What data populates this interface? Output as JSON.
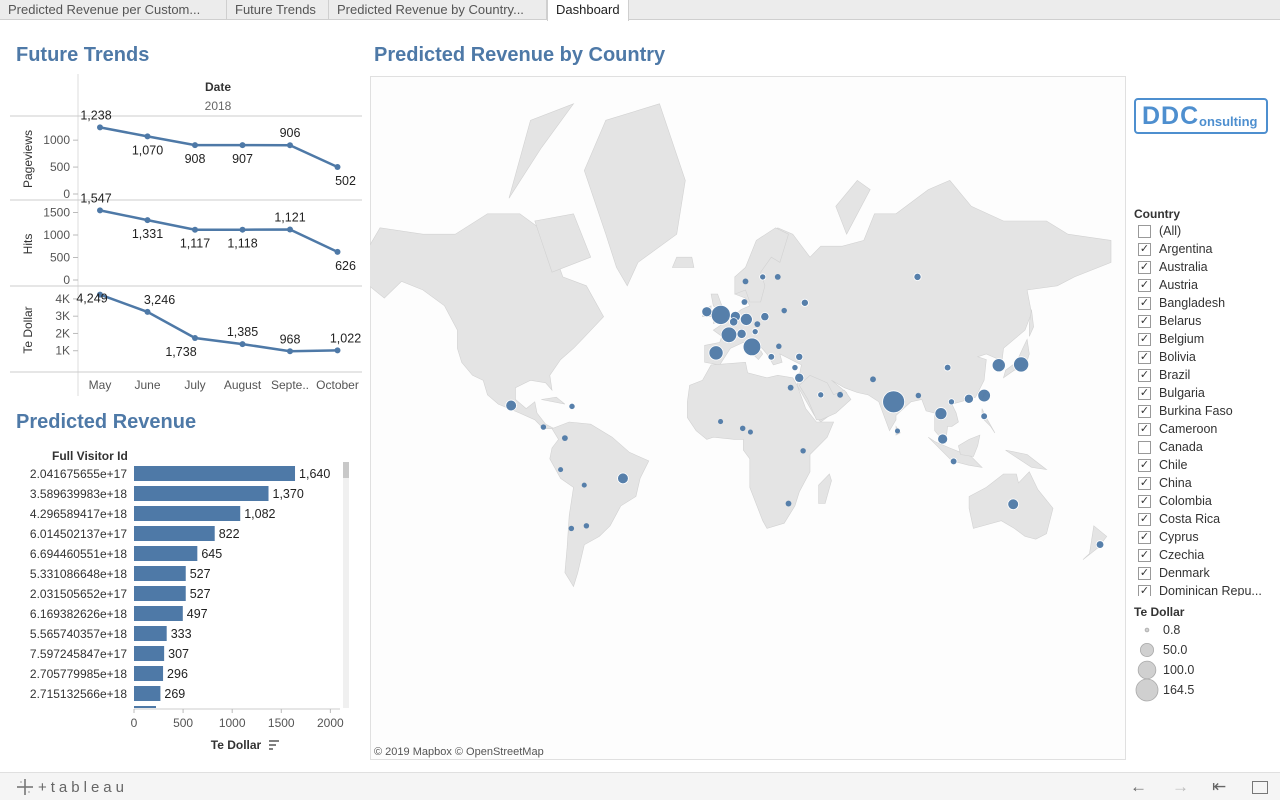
{
  "tabs": [
    {
      "label": "Predicted Revenue per Custom...",
      "active": false
    },
    {
      "label": "Future Trends",
      "active": false
    },
    {
      "label": "Predicted Revenue by Country...",
      "active": false
    },
    {
      "label": "Dashboard",
      "active": true
    }
  ],
  "future_trends": {
    "title": "Future Trends",
    "header_label": "Date",
    "year": "2018"
  },
  "predicted_revenue": {
    "title": "Predicted Revenue",
    "column_header": "Full Visitor Id",
    "axis_label": "Te Dollar"
  },
  "map": {
    "title": "Predicted Revenue by Country",
    "attribution": "© 2019 Mapbox  © OpenStreetMap",
    "logo_text_a": "DDC",
    "logo_text_b": "onsulting"
  },
  "country_filter": {
    "title": "Country",
    "items": [
      {
        "label": "(All)",
        "checked": false
      },
      {
        "label": "Argentina",
        "checked": true
      },
      {
        "label": "Australia",
        "checked": true
      },
      {
        "label": "Austria",
        "checked": true
      },
      {
        "label": "Bangladesh",
        "checked": true
      },
      {
        "label": "Belarus",
        "checked": true
      },
      {
        "label": "Belgium",
        "checked": true
      },
      {
        "label": "Bolivia",
        "checked": true
      },
      {
        "label": "Brazil",
        "checked": true
      },
      {
        "label": "Bulgaria",
        "checked": true
      },
      {
        "label": "Burkina Faso",
        "checked": true
      },
      {
        "label": "Cameroon",
        "checked": true
      },
      {
        "label": "Canada",
        "checked": false
      },
      {
        "label": "Chile",
        "checked": true
      },
      {
        "label": "China",
        "checked": true
      },
      {
        "label": "Colombia",
        "checked": true
      },
      {
        "label": "Costa Rica",
        "checked": true
      },
      {
        "label": "Cyprus",
        "checked": true
      },
      {
        "label": "Czechia",
        "checked": true
      },
      {
        "label": "Denmark",
        "checked": true
      },
      {
        "label": "Dominican Repu...",
        "checked": true
      }
    ]
  },
  "size_legend": {
    "title": "Te Dollar",
    "items": [
      "0.8",
      "50.0",
      "100.0",
      "164.5"
    ]
  },
  "bottom": {
    "brand": "+tableau"
  },
  "colors": {
    "accent": "#4e79a7",
    "land": "#e4e4e4",
    "title": "#4e79a7"
  },
  "chart_data": [
    {
      "type": "line",
      "title": "Future Trends",
      "x": [
        "May",
        "June",
        "July",
        "August",
        "Septe..",
        "October"
      ],
      "series": [
        {
          "name": "Pageviews",
          "values": [
            1238,
            1070,
            908,
            907,
            906,
            502
          ],
          "labels": [
            "1,238",
            "1,070",
            "908",
            "907",
            "906",
            "502"
          ],
          "ticks": [
            "1000",
            "500",
            "0"
          ],
          "ylim": [
            0,
            1300
          ]
        },
        {
          "name": "Hits",
          "values": [
            1547,
            1331,
            1117,
            1118,
            1121,
            626
          ],
          "labels": [
            "1,547",
            "1,331",
            "1,117",
            "1,118",
            "1,121",
            "626"
          ],
          "ticks": [
            "1500",
            "1000",
            "500",
            "0"
          ],
          "ylim": [
            0,
            1600
          ]
        },
        {
          "name": "Te Dollar",
          "values": [
            4249,
            3246,
            1738,
            1385,
            968,
            1022
          ],
          "labels": [
            "4,249",
            "3,246",
            "1,738",
            "1,385",
            "968",
            "1,022"
          ],
          "ticks": [
            "4K",
            "3K",
            "2K",
            "1K"
          ],
          "ylim": [
            0,
            4400
          ]
        }
      ]
    },
    {
      "type": "bar",
      "title": "Predicted Revenue",
      "categories": [
        "2.041675655e+17",
        "3.589639983e+18",
        "4.296589417e+18",
        "6.014502137e+17",
        "6.694460551e+18",
        "5.331086648e+18",
        "2.031505652e+17",
        "6.169382626e+18",
        "5.565740357e+18",
        "7.597245847e+17",
        "2.705779985e+18",
        "2.715132566e+18"
      ],
      "values": [
        1640,
        1370,
        1082,
        822,
        645,
        527,
        527,
        497,
        333,
        307,
        296,
        269
      ],
      "value_labels": [
        "1,640",
        "1,370",
        "1,082",
        "822",
        "645",
        "527",
        "527",
        "497",
        "333",
        "307",
        "296",
        "269"
      ],
      "xlabel": "Te Dollar",
      "xticks": [
        "0",
        "500",
        "1000",
        "1500",
        "2000"
      ],
      "xlim": [
        0,
        2200
      ]
    },
    {
      "type": "scatter",
      "title": "Predicted Revenue by Country",
      "points": [
        {
          "lon": -99,
          "lat": 19.4,
          "value": 30
        },
        {
          "lon": -47,
          "lat": -14,
          "value": 30
        },
        {
          "lon": -3.7,
          "lat": 40.4,
          "value": 60
        },
        {
          "lon": -1.5,
          "lat": 52.5,
          "value": 120
        },
        {
          "lon": 2.3,
          "lat": 46.5,
          "value": 75
        },
        {
          "lon": 13,
          "lat": 42.5,
          "value": 100
        },
        {
          "lon": 10.4,
          "lat": 51.2,
          "value": 40
        },
        {
          "lon": 5.3,
          "lat": 52.1,
          "value": 25
        },
        {
          "lon": 4.5,
          "lat": 50.5,
          "value": 15
        },
        {
          "lon": 8.2,
          "lat": 46.8,
          "value": 20
        },
        {
          "lon": -8,
          "lat": 53.4,
          "value": 25
        },
        {
          "lon": 19,
          "lat": 52,
          "value": 15
        },
        {
          "lon": 78.9,
          "lat": 21,
          "value": 164.5
        },
        {
          "lon": 138.2,
          "lat": 36.2,
          "value": 70
        },
        {
          "lon": 127.8,
          "lat": 35.9,
          "value": 50
        },
        {
          "lon": 121,
          "lat": 23.7,
          "value": 45
        },
        {
          "lon": 100.9,
          "lat": 15.8,
          "value": 40
        },
        {
          "lon": 101.7,
          "lat": 4.2,
          "value": 25
        },
        {
          "lon": 113.9,
          "lat": 22.3,
          "value": 20
        },
        {
          "lon": 134.5,
          "lat": -25.3,
          "value": 30
        },
        {
          "lon": 174.9,
          "lat": -40.9,
          "value": 12
        },
        {
          "lon": 37.6,
          "lat": 55.8,
          "value": 10
        },
        {
          "lon": 35,
          "lat": 31,
          "value": 20
        },
        {
          "lon": 104,
          "lat": 35,
          "value": 8
        },
        {
          "lon": 106.8,
          "lat": -6.2,
          "value": 8
        },
        {
          "lon": 121,
          "lat": 14.6,
          "value": 8
        },
        {
          "lon": -74,
          "lat": 4.6,
          "value": 5
        },
        {
          "lon": -84,
          "lat": 9.7,
          "value": 4
        },
        {
          "lon": -70.7,
          "lat": 19,
          "value": 4
        },
        {
          "lon": -64,
          "lat": -34,
          "value": 4
        },
        {
          "lon": -71,
          "lat": -35,
          "value": 4
        },
        {
          "lon": -65,
          "lat": -17,
          "value": 3
        },
        {
          "lon": -76,
          "lat": -10,
          "value": 3
        },
        {
          "lon": 28,
          "lat": 53.7,
          "value": 4
        },
        {
          "lon": 25.5,
          "lat": 42.7,
          "value": 4
        },
        {
          "lon": 15.5,
          "lat": 49.8,
          "value": 5
        },
        {
          "lon": 9.5,
          "lat": 56,
          "value": 5
        },
        {
          "lon": 33,
          "lat": 35,
          "value": 4
        },
        {
          "lon": -1.6,
          "lat": 12.2,
          "value": 3
        },
        {
          "lon": 12.3,
          "lat": 7.4,
          "value": 3
        },
        {
          "lon": 90.4,
          "lat": 23.7,
          "value": 4
        },
        {
          "lon": 14.5,
          "lat": 47.5,
          "value": 6
        },
        {
          "lon": 18,
          "lat": 62,
          "value": 6
        },
        {
          "lon": 10,
          "lat": 61,
          "value": 5
        },
        {
          "lon": 25,
          "lat": 62,
          "value": 5
        },
        {
          "lon": 22,
          "lat": 39,
          "value": 8
        },
        {
          "lon": 35,
          "lat": 39,
          "value": 10
        },
        {
          "lon": 45,
          "lat": 24,
          "value": 6
        },
        {
          "lon": 54,
          "lat": 24,
          "value": 5
        },
        {
          "lon": 30,
          "lat": -25,
          "value": 5
        },
        {
          "lon": 36.8,
          "lat": -1.3,
          "value": 4
        },
        {
          "lon": 8.7,
          "lat": 9.1,
          "value": 4
        },
        {
          "lon": 31,
          "lat": 27,
          "value": 5
        },
        {
          "lon": 105.8,
          "lat": 21,
          "value": 6
        },
        {
          "lon": 80.7,
          "lat": 7.9,
          "value": 3
        },
        {
          "lon": 69.3,
          "lat": 30.4,
          "value": 5
        },
        {
          "lon": 90,
          "lat": 62,
          "value": 10
        }
      ]
    }
  ]
}
